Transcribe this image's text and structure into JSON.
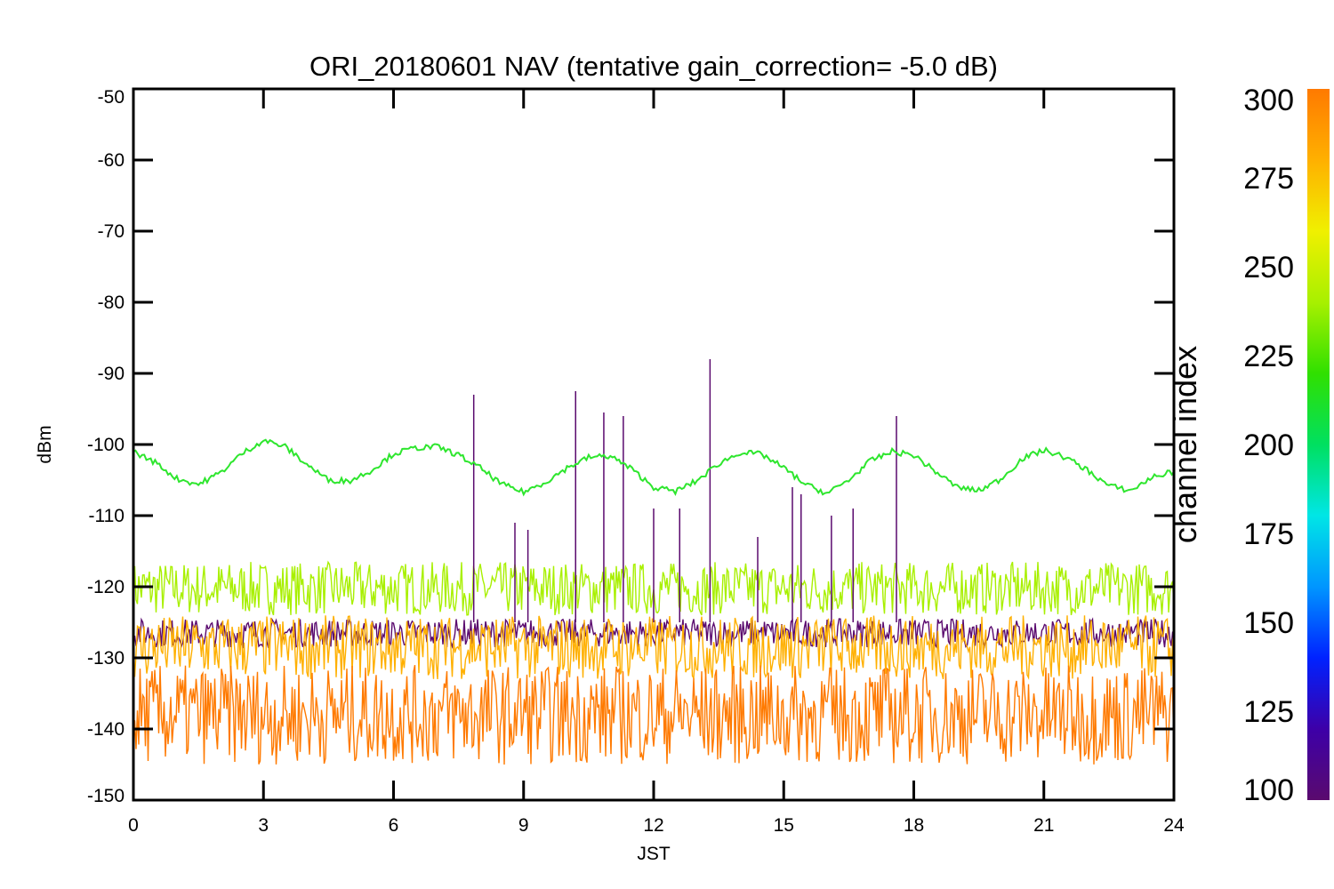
{
  "chart_data": {
    "type": "line",
    "title": "ORI_20180601 NAV (tentative gain_correction= -5.0 dB)",
    "xlabel": "JST",
    "ylabel": "dBm",
    "xlim": [
      0,
      24
    ],
    "ylim": [
      -150,
      -50
    ],
    "xticks": [
      "0",
      "3",
      "6",
      "9",
      "12",
      "15",
      "18",
      "21",
      "24"
    ],
    "yticks": [
      "-50",
      "-60",
      "-70",
      "-80",
      "-90",
      "-100",
      "-110",
      "-120",
      "-130",
      "-140",
      "-150"
    ],
    "grid": false,
    "colorbar": {
      "label": "channel index",
      "range": [
        100,
        300
      ],
      "ticks": [
        "100",
        "125",
        "150",
        "175",
        "200",
        "225",
        "250",
        "275",
        "300"
      ],
      "colormap": [
        "#5a0a6e",
        "#3d00a8",
        "#0022ff",
        "#0096ff",
        "#00e6e6",
        "#00e060",
        "#30e000",
        "#a8f000",
        "#f0f000",
        "#ffb000",
        "#ff7a00"
      ]
    },
    "series": [
      {
        "color": "#2ee62e",
        "x": [
          0,
          0.5,
          1.0,
          1.5,
          2.0,
          2.5,
          3.0,
          3.5,
          4.0,
          4.5,
          5.0,
          5.5,
          6.0,
          6.5,
          7.0,
          7.5,
          8.0,
          8.5,
          9.0,
          9.5,
          10.0,
          10.5,
          11.0,
          11.5,
          12.0,
          12.5,
          13.0,
          13.5,
          14.0,
          14.5,
          15.0,
          15.5,
          16.0,
          16.5,
          17.0,
          17.5,
          18.0,
          18.5,
          19.0,
          19.5,
          20.0,
          20.5,
          21.0,
          21.5,
          22.0,
          22.5,
          23.0,
          23.5,
          24.0
        ],
        "values": [
          -101.0,
          -102.5,
          -104.8,
          -105.6,
          -104.0,
          -101.3,
          -99.4,
          -100.3,
          -102.8,
          -105.0,
          -105.1,
          -103.6,
          -101.3,
          -100.5,
          -100.3,
          -101.5,
          -103.3,
          -105.6,
          -106.7,
          -105.3,
          -103.3,
          -101.8,
          -101.6,
          -103.5,
          -106.0,
          -106.6,
          -105.1,
          -102.7,
          -101.1,
          -101.4,
          -103.3,
          -105.6,
          -106.9,
          -105.0,
          -102.3,
          -101.0,
          -101.5,
          -103.8,
          -106.0,
          -106.5,
          -104.9,
          -102.0,
          -100.8,
          -101.8,
          -103.6,
          -105.8,
          -106.5,
          -104.6,
          -103.8
        ]
      },
      {
        "color": "#a8f000",
        "band": [
          -124.0,
          -116.5
        ]
      },
      {
        "color": "#5a0a6e",
        "band": [
          -128.5,
          -124.5
        ]
      },
      {
        "color": "#ffb000",
        "band": [
          -133.0,
          -124.0
        ]
      },
      {
        "color": "#ff7a00",
        "band": [
          -145.0,
          -131.0
        ]
      },
      {
        "color": "#5a0a6e",
        "spikes": [
          {
            "x": 7.85,
            "value": -93.0
          },
          {
            "x": 8.8,
            "value": -111.0
          },
          {
            "x": 9.1,
            "value": -112.0
          },
          {
            "x": 10.2,
            "value": -92.5
          },
          {
            "x": 10.85,
            "value": -95.5
          },
          {
            "x": 11.3,
            "value": -96.0
          },
          {
            "x": 12.0,
            "value": -109.0
          },
          {
            "x": 12.6,
            "value": -109.0
          },
          {
            "x": 13.3,
            "value": -88.0
          },
          {
            "x": 14.4,
            "value": -113.0
          },
          {
            "x": 15.2,
            "value": -106.0
          },
          {
            "x": 15.4,
            "value": -107.0
          },
          {
            "x": 16.1,
            "value": -110.0
          },
          {
            "x": 16.6,
            "value": -109.0
          },
          {
            "x": 17.6,
            "value": -96.0
          }
        ]
      }
    ]
  }
}
